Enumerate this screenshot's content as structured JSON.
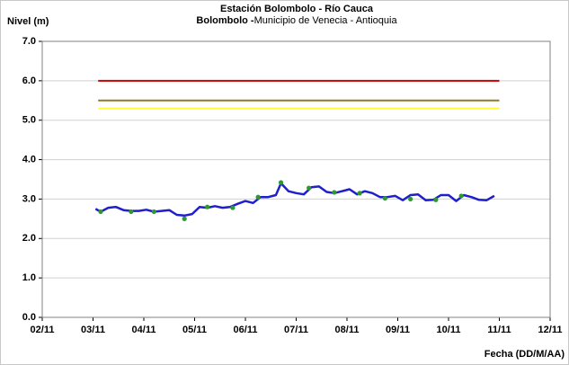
{
  "chart_data": {
    "type": "line",
    "title": "Estación Bolombolo - Río Cauca",
    "subtitle": [
      "Bolombolo -",
      "Municipio de Venecia - Antioquia"
    ],
    "y_label": "Nivel (m)",
    "x_label": "Fecha (DD/M/AA)",
    "xlim": [
      2,
      12
    ],
    "xticks": [
      {
        "value": 2,
        "label": "02/11"
      },
      {
        "value": 3,
        "label": "03/11"
      },
      {
        "value": 4,
        "label": "04/11"
      },
      {
        "value": 5,
        "label": "05/11"
      },
      {
        "value": 6,
        "label": "06/11"
      },
      {
        "value": 7,
        "label": "07/11"
      },
      {
        "value": 8,
        "label": "08/11"
      },
      {
        "value": 9,
        "label": "09/11"
      },
      {
        "value": 10,
        "label": "10/11"
      },
      {
        "value": 11,
        "label": "11/11"
      },
      {
        "value": 12,
        "label": "12/11"
      }
    ],
    "ylim": [
      0,
      7
    ],
    "yticks": [
      {
        "value": 0,
        "label": "0.0"
      },
      {
        "value": 1,
        "label": "1.0"
      },
      {
        "value": 2,
        "label": "2.0"
      },
      {
        "value": 3,
        "label": "3.0"
      },
      {
        "value": 4,
        "label": "4.0"
      },
      {
        "value": 5,
        "label": "5.0"
      },
      {
        "value": 6,
        "label": "6.0"
      },
      {
        "value": 7,
        "label": "7.0"
      }
    ],
    "grid": true,
    "series": [
      {
        "color": "#cc0000",
        "x": [
          3.1,
          11.0
        ],
        "values": [
          6.0,
          6.0
        ]
      },
      {
        "color": "#8b7d2a",
        "x": [
          3.1,
          11.0
        ],
        "values": [
          5.5,
          5.5
        ]
      },
      {
        "color": "#ffff33",
        "x": [
          3.1,
          11.0
        ],
        "values": [
          5.3,
          5.3
        ]
      },
      {
        "color": "#1f1fcc",
        "x": [
          3.05,
          3.15,
          3.3,
          3.45,
          3.6,
          3.75,
          3.9,
          4.05,
          4.2,
          4.35,
          4.5,
          4.65,
          4.8,
          4.95,
          5.1,
          5.25,
          5.4,
          5.55,
          5.7,
          5.85,
          6.0,
          6.15,
          6.3,
          6.45,
          6.6,
          6.7,
          6.85,
          7.0,
          7.15,
          7.3,
          7.45,
          7.6,
          7.75,
          7.9,
          8.05,
          8.2,
          8.35,
          8.5,
          8.65,
          8.8,
          8.95,
          9.1,
          9.25,
          9.4,
          9.55,
          9.7,
          9.85,
          10.0,
          10.15,
          10.3,
          10.45,
          10.6,
          10.75,
          10.9
        ],
        "values": [
          2.75,
          2.68,
          2.78,
          2.8,
          2.72,
          2.7,
          2.7,
          2.73,
          2.68,
          2.7,
          2.72,
          2.6,
          2.58,
          2.62,
          2.8,
          2.78,
          2.82,
          2.78,
          2.8,
          2.88,
          2.95,
          2.9,
          3.05,
          3.05,
          3.1,
          3.4,
          3.2,
          3.15,
          3.12,
          3.3,
          3.32,
          3.18,
          3.15,
          3.2,
          3.25,
          3.12,
          3.2,
          3.15,
          3.05,
          3.05,
          3.08,
          2.97,
          3.1,
          3.12,
          2.97,
          2.98,
          3.1,
          3.1,
          2.95,
          3.1,
          3.05,
          2.98,
          2.97,
          3.08
        ]
      },
      {
        "type": "scatter",
        "color": "#2e9a2e",
        "x": [
          3.15,
          3.75,
          4.2,
          4.8,
          5.25,
          5.75,
          6.25,
          6.7,
          7.25,
          7.75,
          8.25,
          8.75,
          9.25,
          9.75,
          10.25
        ],
        "values": [
          2.68,
          2.68,
          2.68,
          2.5,
          2.8,
          2.78,
          3.05,
          3.42,
          3.28,
          3.17,
          3.15,
          3.02,
          3.0,
          2.98,
          3.08
        ]
      }
    ]
  }
}
